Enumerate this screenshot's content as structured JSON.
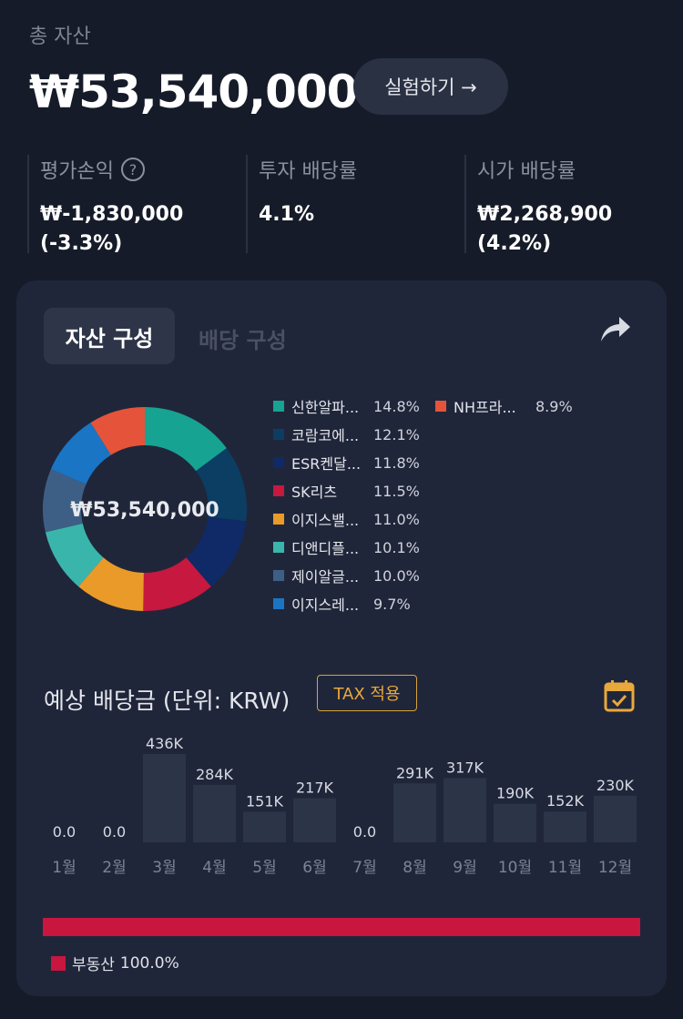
{
  "header": {
    "total_label": "총 자산",
    "total_value": "₩53,540,000",
    "experiment_button": "실험하기 →"
  },
  "stats": [
    {
      "label": "평가손익",
      "value": "₩-1,830,000\n(-3.3%)"
    },
    {
      "label": "투자 배당률",
      "value": "4.1%"
    },
    {
      "label": "시가 배당률",
      "value": "₩2,268,900 (4.2%)"
    }
  ],
  "tabs": {
    "active": "자산 구성",
    "inactive": "배당 구성"
  },
  "composition": {
    "center_value": "₩53,540,000",
    "items": [
      {
        "name": "신한알파...",
        "pct": "14.8%",
        "value": 14.8,
        "color": "#17a392"
      },
      {
        "name": "코람코에...",
        "pct": "12.1%",
        "value": 12.1,
        "color": "#0c3d63"
      },
      {
        "name": "ESR켄달...",
        "pct": "11.8%",
        "value": 11.8,
        "color": "#0f2a66"
      },
      {
        "name": "SK리츠",
        "pct": "11.5%",
        "value": 11.5,
        "color": "#c7183f"
      },
      {
        "name": "이지스밸...",
        "pct": "11.0%",
        "value": 11.0,
        "color": "#ea9a28"
      },
      {
        "name": "디앤디플...",
        "pct": "10.1%",
        "value": 10.1,
        "color": "#3ab5ab"
      },
      {
        "name": "제이알글...",
        "pct": "10.0%",
        "value": 10.0,
        "color": "#3e5f85"
      },
      {
        "name": "이지스레...",
        "pct": "9.7%",
        "value": 9.7,
        "color": "#1a75c4"
      },
      {
        "name": "NH프라...",
        "pct": "8.9%",
        "value": 8.9,
        "color": "#e5543a"
      }
    ]
  },
  "dividends": {
    "title": "예상 배당금 (단위: KRW)",
    "tax_badge": "TAX 적용",
    "months": [
      {
        "month": "1월",
        "label": "0.0",
        "value": 0
      },
      {
        "month": "2월",
        "label": "0.0",
        "value": 0
      },
      {
        "month": "3월",
        "label": "436K",
        "value": 436
      },
      {
        "month": "4월",
        "label": "284K",
        "value": 284
      },
      {
        "month": "5월",
        "label": "151K",
        "value": 151
      },
      {
        "month": "6월",
        "label": "217K",
        "value": 217
      },
      {
        "month": "7월",
        "label": "0.0",
        "value": 0
      },
      {
        "month": "8월",
        "label": "291K",
        "value": 291
      },
      {
        "month": "9월",
        "label": "317K",
        "value": 317
      },
      {
        "month": "10월",
        "label": "190K",
        "value": 190
      },
      {
        "month": "11월",
        "label": "152K",
        "value": 152
      },
      {
        "month": "12월",
        "label": "230K",
        "value": 230
      }
    ]
  },
  "sector": {
    "label": "부동산",
    "pct": "100.0%",
    "value": 100.0,
    "color": "#c8163f"
  },
  "colors": {
    "background": "#161b29",
    "card": "#20263a",
    "bar": "#2c3447",
    "accent_orange": "#e8a93c"
  }
}
